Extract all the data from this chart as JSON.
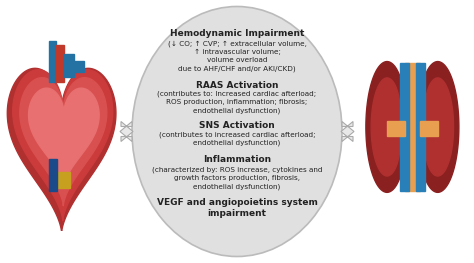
{
  "bg_color": "#ffffff",
  "ellipse_color": "#e0e0e0",
  "ellipse_edge_color": "#bbbbbb",
  "title1": "Hemodynamic Impairment",
  "sub1": "(↓ CO; ↑ CVP; ↑ extracellular volume,\n↑ intravascular volume;\nvolume overload\ndue to AHF/CHF and/or AKI/CKD)",
  "title2": "RAAS Activation",
  "sub2": "(contributes to: Increased cardiac afterload;\nROS production, inflammation; fibrosis;\nendothelial dysfunction)",
  "title3": "SNS Activation",
  "sub3": "(contributes to increased cardiac afterload;\nendothelial dysfunction)",
  "title4": "Inflammation",
  "sub4": "(characterized by: ROS increase, cytokines and\ngrowth factors production, fibrosis,\nendothelial dysfunction)",
  "title5": "VEGF and angiopoietins system\nimpairment",
  "arrow_fill": "#e8e8e8",
  "arrow_edge": "#aaaaaa",
  "text_color": "#222222",
  "title_fontsize": 6.5,
  "sub_fontsize": 5.2
}
